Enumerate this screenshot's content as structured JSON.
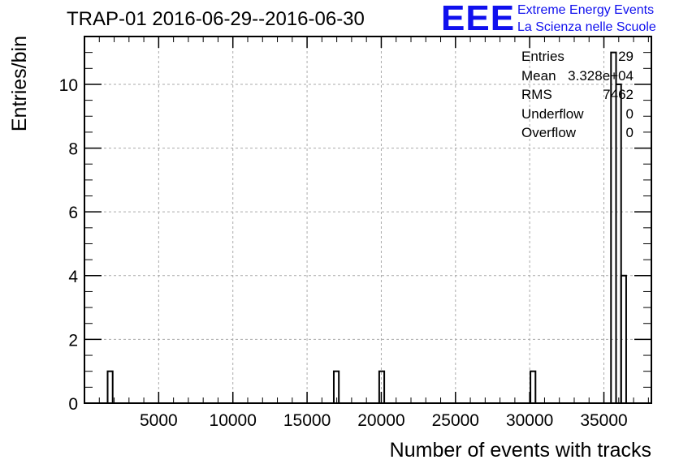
{
  "title": "TRAP-01 2016-06-29--2016-06-30",
  "logo": {
    "mark": "EEE",
    "line1": "Extreme Energy Events",
    "line2": "La Scienza nelle Scuole",
    "color": "#1010ee"
  },
  "stats": [
    {
      "label": "Entries",
      "value": "29"
    },
    {
      "label": "Mean",
      "value": "3.328e+04"
    },
    {
      "label": "RMS",
      "value": "7462"
    },
    {
      "label": "Underflow",
      "value": "0"
    },
    {
      "label": "Overflow",
      "value": "0"
    }
  ],
  "chart_data": {
    "type": "bar",
    "title": "TRAP-01 2016-06-29--2016-06-30",
    "xlabel": "Number of events with tracks",
    "ylabel": "Entries/bin",
    "xlim": [
      0,
      38200
    ],
    "ylim": [
      0,
      11.5
    ],
    "xticks": [
      5000,
      10000,
      15000,
      20000,
      25000,
      30000,
      35000
    ],
    "yticks": [
      0,
      2,
      4,
      6,
      8,
      10
    ],
    "grid": true,
    "bin_width": 340,
    "bins": [
      {
        "x0": 1560,
        "x1": 1900,
        "value": 1
      },
      {
        "x0": 16800,
        "x1": 17140,
        "value": 1
      },
      {
        "x0": 19860,
        "x1": 20200,
        "value": 1
      },
      {
        "x0": 30050,
        "x1": 30390,
        "value": 1
      },
      {
        "x0": 35480,
        "x1": 35820,
        "value": 11
      },
      {
        "x0": 35820,
        "x1": 36160,
        "value": 10
      },
      {
        "x0": 36160,
        "x1": 36500,
        "value": 4
      }
    ]
  }
}
